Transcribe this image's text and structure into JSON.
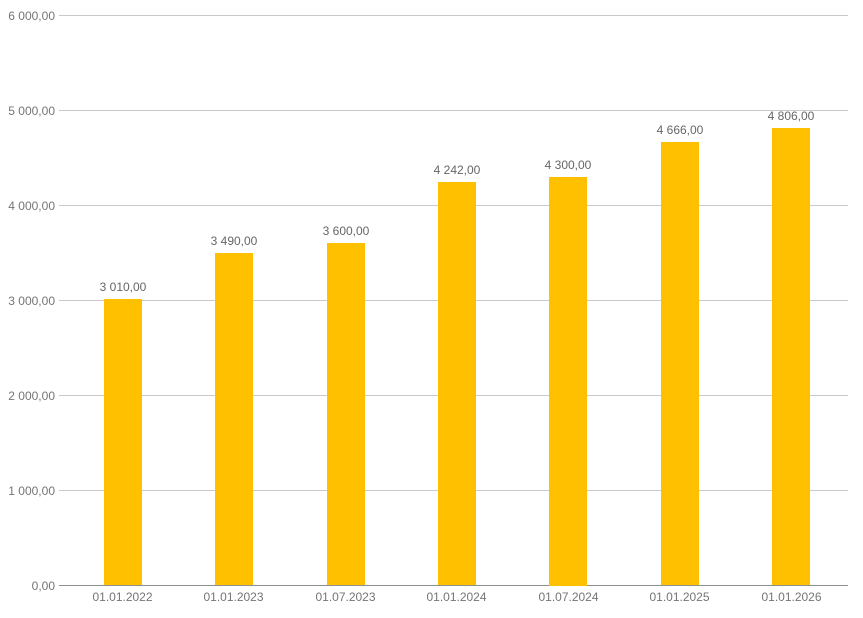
{
  "chart_data": {
    "type": "bar",
    "title": "",
    "xlabel": "",
    "ylabel": "",
    "categories": [
      "01.01.2022",
      "01.01.2023",
      "01.07.2023",
      "01.01.2024",
      "01.07.2024",
      "01.01.2025",
      "01.01.2026"
    ],
    "values": [
      3010,
      3490,
      3600,
      4242,
      4300,
      4666,
      4806
    ],
    "value_labels": [
      "3 010,00",
      "3 490,00",
      "3 600,00",
      "4 242,00",
      "4 300,00",
      "4 666,00",
      "4 806,00"
    ],
    "y_ticks": [
      {
        "value": 0,
        "label": "0,00"
      },
      {
        "value": 1000,
        "label": "1 000,00"
      },
      {
        "value": 2000,
        "label": "2 000,00"
      },
      {
        "value": 3000,
        "label": "3 000,00"
      },
      {
        "value": 4000,
        "label": "4 000,00"
      },
      {
        "value": 5000,
        "label": "5 000,00"
      },
      {
        "value": 6000,
        "label": "6 000,00"
      }
    ],
    "ylim": [
      0,
      6000
    ],
    "grid": true,
    "legend": false,
    "data_labels": true,
    "colors": {
      "bar": "#FFC000",
      "gridline": "#c9c9c9",
      "axis_line": "#8f8f8f",
      "axis_label": "#757575",
      "value_label": "#666666",
      "background": "#ffffff"
    }
  }
}
